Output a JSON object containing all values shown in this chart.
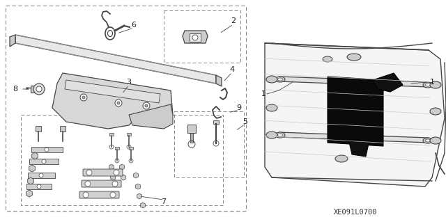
{
  "background_color": "#ffffff",
  "line_color": "#444444",
  "dash_color": "#888888",
  "code": "XE091L0700",
  "fig_width": 6.4,
  "fig_height": 3.19,
  "dpi": 100
}
